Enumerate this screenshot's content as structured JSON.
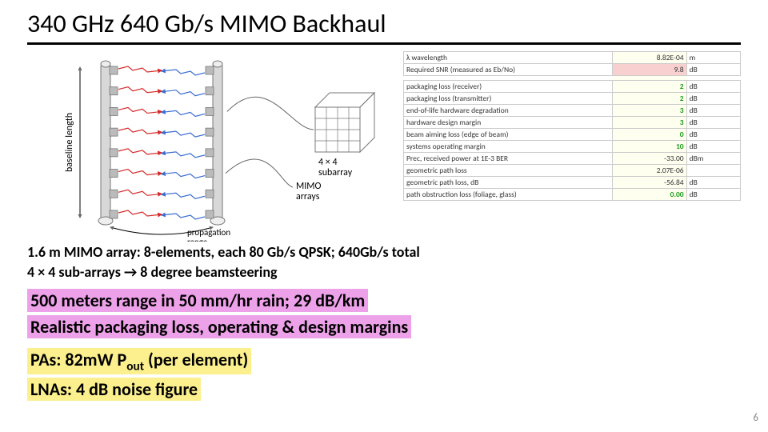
{
  "title": "340 GHz 640 Gb/s MIMO Backhaul",
  "diagram": {
    "baseline_label": "baseline length",
    "prop_label": "propagation\nrange",
    "mimo_label": "MIMO\narrays",
    "subarray_label": "4 × 4\nsubarray",
    "n_elements": 8,
    "subarray_grid": 4,
    "colors": {
      "outline": "#777",
      "fill": "#d8d8d8",
      "arrow_red": "#d42a2a",
      "arrow_blue": "#3a6ccf",
      "leader": "#666"
    }
  },
  "caption1": "1.6 m MIMO array: 8-elements, each 80 Gb/s QPSK; 640Gb/s total",
  "caption2": "4 × 4 sub-arrays → 8 degree beamsteering",
  "hl1": "500 meters range in 50 mm/hr rain; 29 dB/km",
  "hl2": "Realistic packaging loss, operating & design margins",
  "hl3a": "PAs: 82mW P",
  "hl3sub": "out",
  "hl3b": "  (per element)",
  "hl4": "LNAs: 4 dB noise figure",
  "pageno": "6",
  "table": {
    "col_widths": [
      "62%",
      "22%",
      "16%"
    ],
    "rows": [
      {
        "l": "λ wavelength",
        "v": "8.82E-04",
        "u": "m",
        "cls": ""
      },
      {
        "l": "Required SNR (measured as Eb/No)",
        "v": "9.8",
        "u": "dB",
        "cls": "redbg"
      },
      {
        "l": "",
        "v": "",
        "u": "",
        "cls": ""
      },
      {
        "l": "packaging loss (receiver)",
        "v": "2",
        "u": "dB",
        "cls": "green"
      },
      {
        "l": "packaging loss (transmitter)",
        "v": "2",
        "u": "dB",
        "cls": "green"
      },
      {
        "l": "end-of-life hardware degradation",
        "v": "3",
        "u": "dB",
        "cls": "green"
      },
      {
        "l": "hardware design margin",
        "v": "3",
        "u": "dB",
        "cls": "green"
      },
      {
        "l": "beam aiming loss (edge of beam)",
        "v": "0",
        "u": "dB",
        "cls": "green"
      },
      {
        "l": "systems operating margin",
        "v": "10",
        "u": "dB",
        "cls": "green"
      },
      {
        "l": "Prec, received power at 1E-3 BER",
        "v": "-33.00",
        "u": "dBm",
        "cls": ""
      },
      {
        "l": "geometric path loss",
        "v": "2.07E-06",
        "u": "",
        "cls": ""
      },
      {
        "l": "geometric path loss, dB",
        "v": "-56.84",
        "u": "dB",
        "cls": ""
      },
      {
        "l": "path obstruction loss (foliage, glass)",
        "v": "0.00",
        "u": "dB",
        "cls": "green"
      }
    ]
  }
}
